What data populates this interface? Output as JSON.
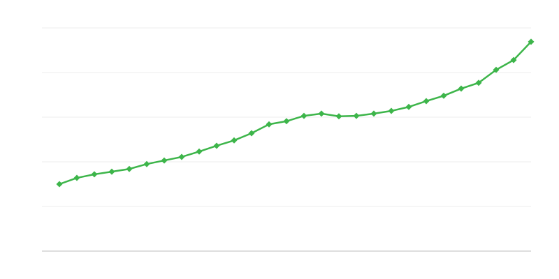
{
  "chart_data": {
    "type": "line",
    "categories": [
      null,
      null,
      null,
      null,
      null,
      null,
      null,
      null,
      null,
      null,
      null,
      null,
      null,
      null,
      null,
      null,
      null,
      null,
      null,
      null,
      null,
      null,
      null,
      null,
      null,
      null,
      null,
      null
    ],
    "series": [
      {
        "color": "#3db54a",
        "values": [
          1.5,
          1.64,
          1.72,
          1.78,
          1.84,
          1.95,
          2.03,
          2.11,
          2.23,
          2.36,
          2.48,
          2.64,
          2.84,
          2.91,
          3.03,
          3.08,
          3.02,
          3.03,
          3.08,
          3.14,
          3.23,
          3.36,
          3.48,
          3.64,
          3.77,
          4.06,
          4.28,
          4.69
        ]
      }
    ],
    "ylim": [
      0,
      5
    ],
    "yticks": [
      0,
      1,
      2,
      3,
      4,
      5
    ],
    "grid": true
  }
}
